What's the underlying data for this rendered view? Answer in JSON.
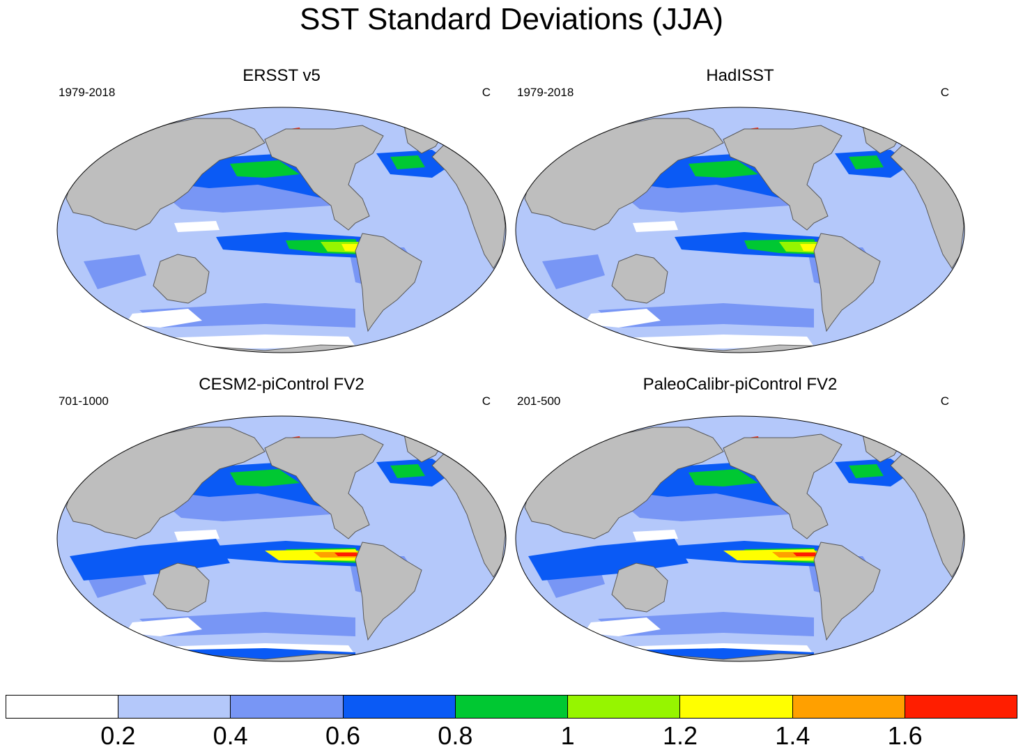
{
  "title": "SST Standard Deviations (JJA)",
  "panels": [
    {
      "title": "ERSST v5",
      "left": "1979-2018",
      "right": "C"
    },
    {
      "title": "HadISST",
      "left": "1979-2018",
      "right": "C"
    },
    {
      "title": "CESM2-piControl FV2",
      "left": "701-1000",
      "right": "C"
    },
    {
      "title": "PaleoCalibr-piControl FV2",
      "left": "201-500",
      "right": "C"
    }
  ],
  "colorbar": {
    "colors": [
      "#ffffff",
      "#b4c8fa",
      "#7896f5",
      "#0a5af5",
      "#00c832",
      "#96f500",
      "#ffff00",
      "#ffa000",
      "#ff1e00"
    ],
    "labels": [
      "0.2",
      "0.4",
      "0.6",
      "0.8",
      "1",
      "1.2",
      "1.4",
      "1.6"
    ]
  },
  "colors": {
    "land": "#bebebe",
    "ocean_low": "#b4c8fa"
  }
}
